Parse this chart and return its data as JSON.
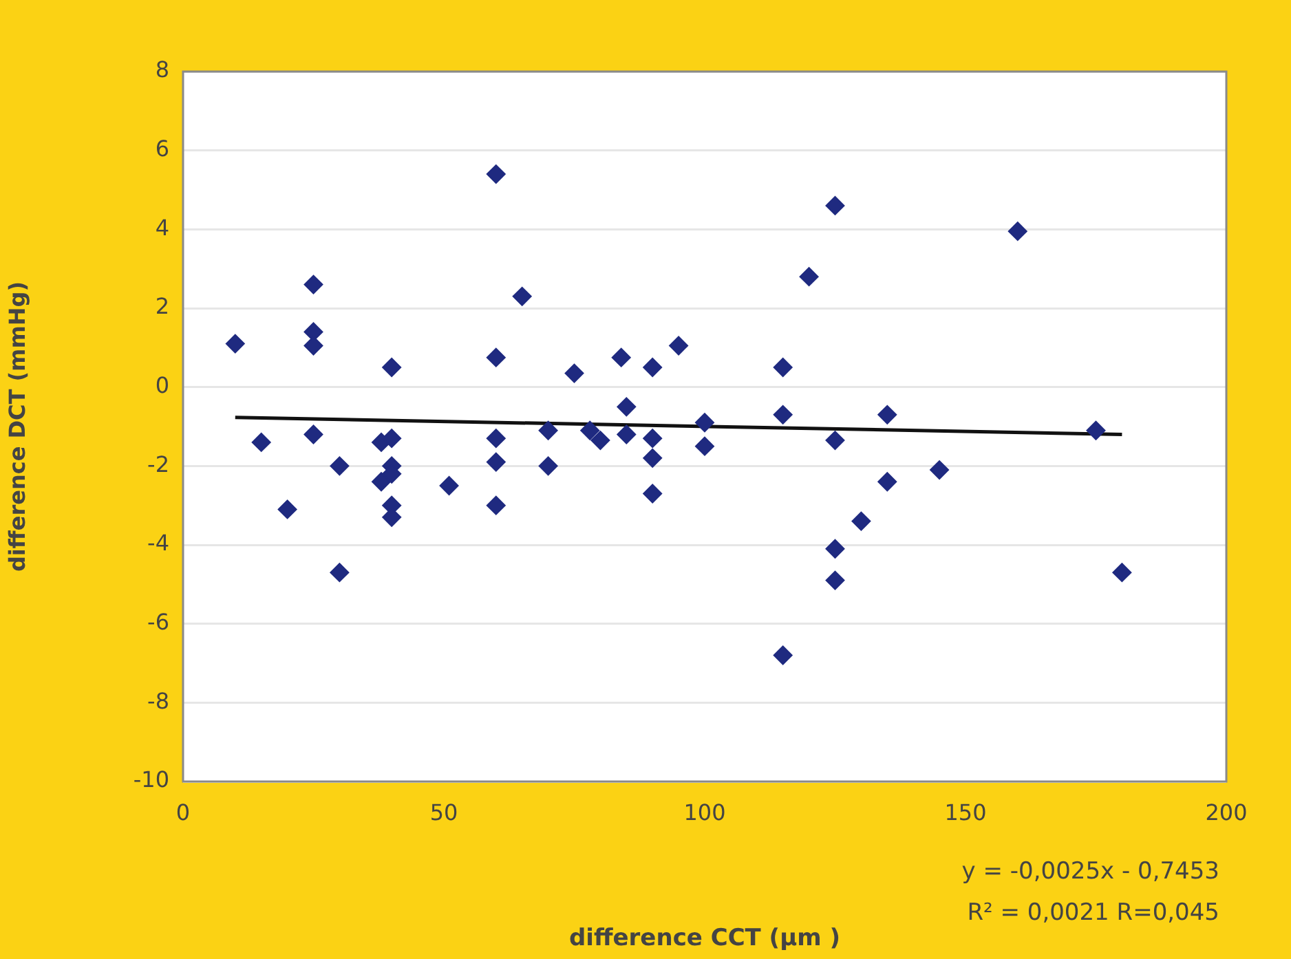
{
  "chart_data": {
    "type": "scatter",
    "xlabel": "difference CCT (µm )",
    "ylabel": "difference DCT (mmHg)",
    "annotations": [
      "y = -0,0025x - 0,7453",
      "R² = 0,0021 R=0,045"
    ],
    "xlim": [
      0,
      200
    ],
    "xticks": [
      0,
      50,
      100,
      150,
      200
    ],
    "ylim": [
      -10,
      8
    ],
    "yticks": [
      -10,
      -8,
      -6,
      -4,
      -2,
      0,
      2,
      4,
      6,
      8
    ],
    "grid": "y",
    "legend": false,
    "marker": "diamond",
    "series": [
      {
        "color": "#1f2a80",
        "x": [
          10,
          15,
          20,
          25,
          25,
          25,
          25,
          30,
          30,
          38,
          40,
          38,
          40,
          40,
          40,
          40,
          40,
          51,
          60,
          60,
          60,
          60,
          60,
          65,
          70,
          70,
          75,
          78,
          80,
          84,
          85,
          85,
          90,
          90,
          90,
          90,
          95,
          100,
          100,
          115,
          115,
          115,
          120,
          125,
          125,
          125,
          125,
          130,
          135,
          135,
          145,
          160,
          175,
          180
        ],
        "values": [
          1.1,
          -1.4,
          -3.1,
          2.6,
          1.4,
          1.05,
          -1.2,
          -2.0,
          -4.7,
          -2.4,
          0.5,
          -1.4,
          -1.3,
          -2.0,
          -2.2,
          -3.0,
          -3.3,
          -2.5,
          5.4,
          0.75,
          -1.3,
          -1.9,
          -3.0,
          2.3,
          -1.1,
          -2.0,
          0.35,
          -1.1,
          -1.35,
          0.75,
          -0.5,
          -1.2,
          0.5,
          -1.3,
          -1.8,
          -2.7,
          1.05,
          -0.9,
          -1.5,
          0.5,
          -0.7,
          -6.8,
          2.8,
          4.6,
          -1.35,
          -4.1,
          -4.9,
          -3.4,
          -0.7,
          -2.4,
          -2.1,
          3.95,
          -1.1,
          -4.7
        ]
      },
      {
        "type": "line",
        "color": "#111111",
        "marker": "none",
        "x": [
          10,
          180
        ],
        "values": [
          -0.77,
          -1.2
        ]
      }
    ]
  }
}
